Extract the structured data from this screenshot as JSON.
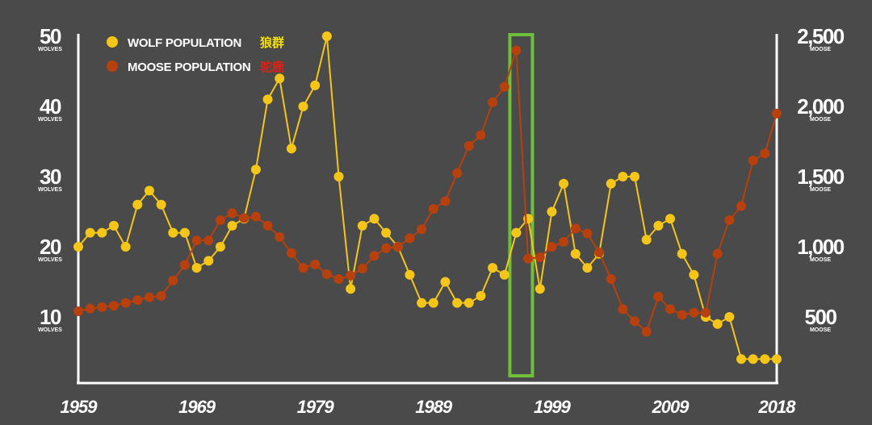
{
  "chart_data": {
    "type": "line",
    "x": [
      1959,
      1960,
      1961,
      1962,
      1963,
      1964,
      1965,
      1966,
      1967,
      1968,
      1969,
      1970,
      1971,
      1972,
      1973,
      1974,
      1975,
      1976,
      1977,
      1978,
      1979,
      1980,
      1981,
      1982,
      1983,
      1984,
      1985,
      1986,
      1987,
      1988,
      1989,
      1990,
      1991,
      1992,
      1993,
      1994,
      1995,
      1996,
      1997,
      1998,
      1999,
      2000,
      2001,
      2002,
      2003,
      2004,
      2005,
      2006,
      2007,
      2008,
      2009,
      2010,
      2011,
      2012,
      2013,
      2014,
      2015,
      2016,
      2017,
      2018
    ],
    "xlim": [
      1959,
      2018
    ],
    "xticks": [
      1959,
      1969,
      1979,
      1989,
      1999,
      2009,
      2018
    ],
    "ylim": [
      0,
      50
    ],
    "yticks": [
      10,
      20,
      30,
      40,
      50
    ],
    "y_unit": "WOLVES",
    "y2lim": [
      0,
      2500
    ],
    "y2ticks": [
      500,
      {
        "value": 1000,
        "label": "1,000"
      },
      {
        "value": 1500,
        "label": "1,500"
      },
      {
        "value": 2000,
        "label": "2,000"
      },
      {
        "value": 2500,
        "label": "2,500"
      }
    ],
    "y2_unit": "MOOSE",
    "legend": "top-left",
    "highlight_x": 1996,
    "highlight_color": "#6fbf3a",
    "series": [
      {
        "name": "WOLF POPULATION",
        "label_cn": "狼群",
        "color": "#f5c518",
        "values": [
          20,
          22,
          22,
          23,
          20,
          26,
          28,
          26,
          22,
          22,
          17,
          18,
          20,
          23,
          24,
          31,
          41,
          44,
          34,
          40,
          43,
          50,
          30,
          14,
          23,
          24,
          22,
          20,
          16,
          12,
          12,
          15,
          12,
          12,
          13,
          17,
          16,
          22,
          24,
          14,
          25,
          29,
          19,
          17,
          19,
          29,
          30,
          30,
          21,
          23,
          24,
          19,
          16,
          10,
          9,
          10,
          4,
          4,
          4,
          4
        ]
      },
      {
        "name": "MOOSE POPULATION",
        "label_cn": "驼鹿",
        "color": "#b8400c",
        "axis": "y2",
        "values": [
          540,
          560,
          570,
          580,
          600,
          620,
          640,
          650,
          760,
          870,
          1045,
          1045,
          1190,
          1240,
          1205,
          1215,
          1150,
          1070,
          955,
          850,
          875,
          805,
          770,
          795,
          845,
          935,
          990,
          1000,
          1060,
          1125,
          1270,
          1325,
          1525,
          1720,
          1795,
          2030,
          2140,
          2400,
          915,
          925,
          1000,
          1035,
          1130,
          1095,
          960,
          770,
          555,
          470,
          395,
          645,
          555,
          515,
          530,
          530,
          950,
          1190,
          1290,
          1615,
          1665,
          1950
        ]
      }
    ]
  }
}
